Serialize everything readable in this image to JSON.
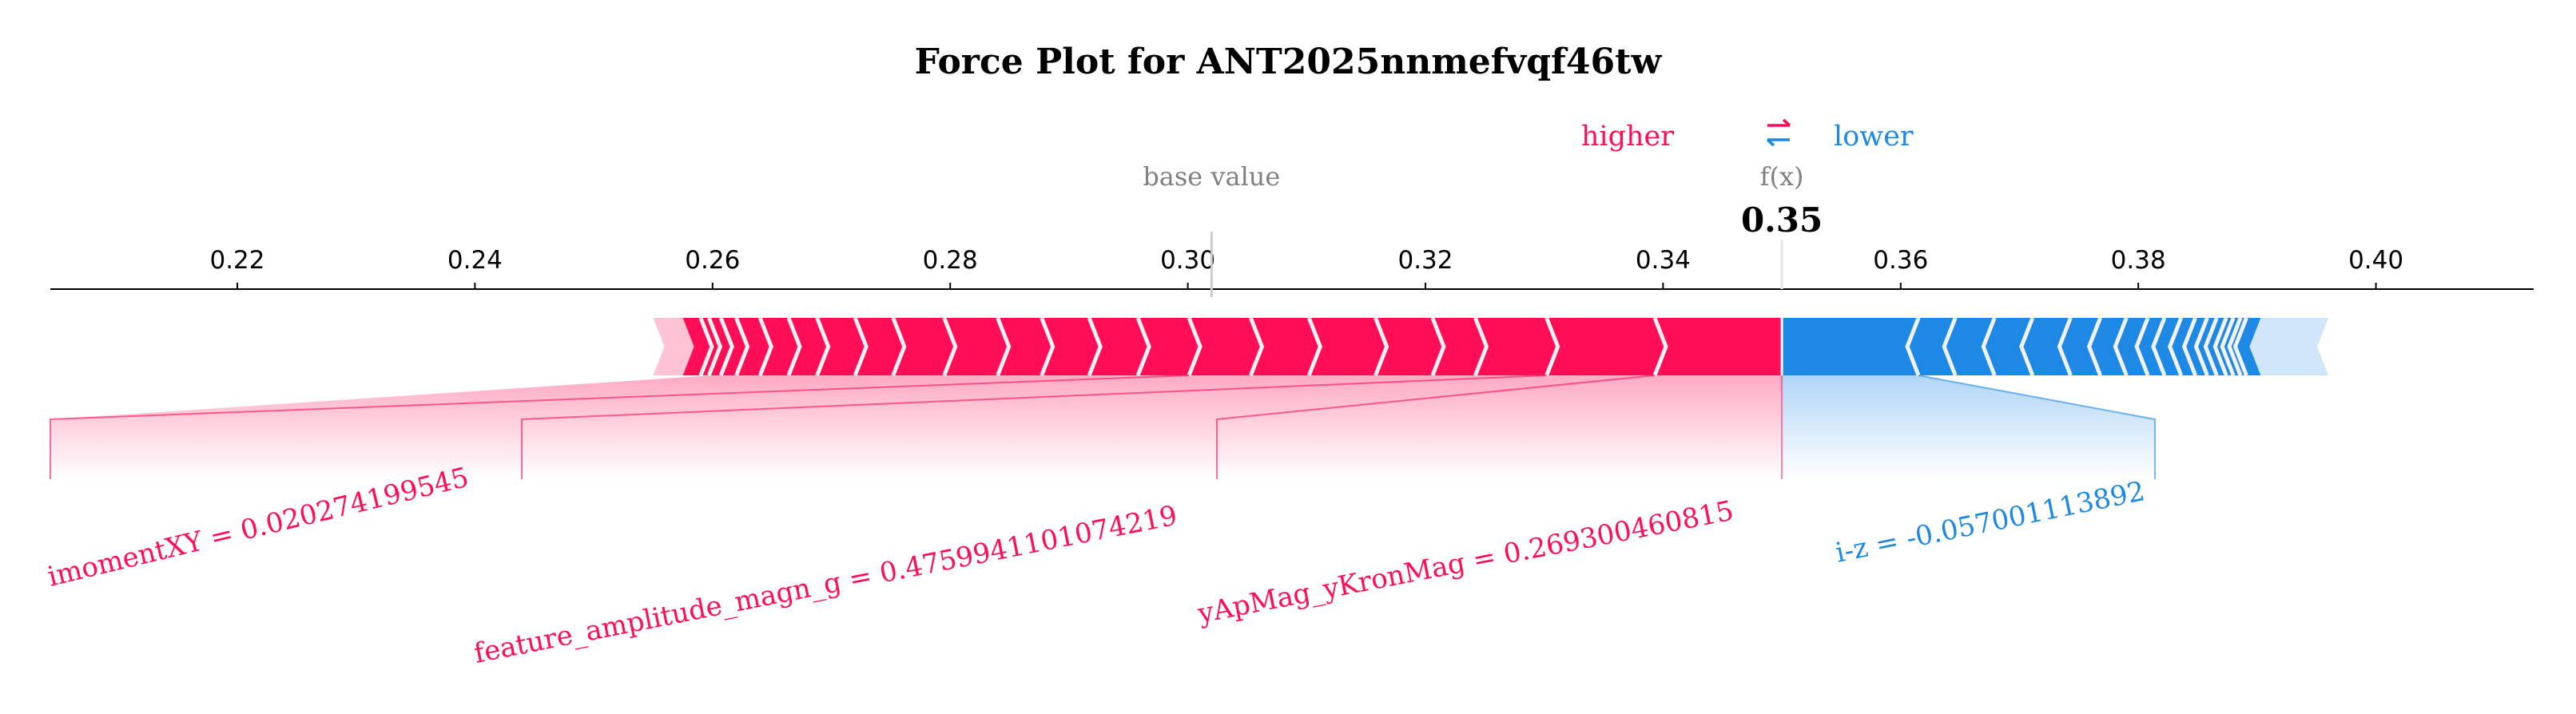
{
  "chart_data": {
    "type": "force",
    "title": "Force Plot for ANT2025nnmefvqf46tw",
    "legend": {
      "higher": "higher",
      "arrows": "⇄",
      "lower": "lower"
    },
    "base_value_label": "base value",
    "fx_label": "f(x)",
    "fx_value": 0.35,
    "fx_value_text": "0.35",
    "base_value": 0.302,
    "xlim": [
      0.205,
      0.413
    ],
    "ticks": [
      0.22,
      0.24,
      0.26,
      0.28,
      0.3,
      0.32,
      0.34,
      0.36,
      0.38,
      0.4
    ],
    "tick_labels": [
      "0.22",
      "0.24",
      "0.26",
      "0.28",
      "0.30",
      "0.32",
      "0.34",
      "0.36",
      "0.38",
      "0.40"
    ],
    "positive_range": [
      0.255,
      0.35
    ],
    "negative_range": [
      0.35,
      0.396
    ],
    "positive_segments": [
      0.3393,
      0.3302,
      0.3242,
      0.3206,
      0.3158,
      0.3102,
      0.3053,
      0.3001,
      0.2958,
      0.2917,
      0.2877,
      0.284,
      0.2795,
      0.2752,
      0.272,
      0.2688,
      0.2664,
      0.264,
      0.262,
      0.2607,
      0.2597,
      0.259
    ],
    "negative_segments": [
      0.3615,
      0.3646,
      0.3679,
      0.3711,
      0.3743,
      0.3768,
      0.379,
      0.3808,
      0.3822,
      0.3836,
      0.3848,
      0.3858,
      0.3866,
      0.3874,
      0.388,
      0.3886,
      0.3891
    ],
    "labels": [
      {
        "text": "imomentXY = 0.020274199545",
        "seg_start": 0.26,
        "seg_end": 0.3001,
        "direction": "higher"
      },
      {
        "text": "feature_amplitude_magn_g = 0.4759941101074219",
        "seg_start": 0.3001,
        "seg_end": 0.3302,
        "direction": "higher"
      },
      {
        "text": "yApMag_yKronMag = 0.269300460815",
        "seg_start": 0.3302,
        "seg_end": 0.3393,
        "direction": "higher"
      },
      {
        "text": "i-z = -0.057001113892",
        "seg_start": 0.35,
        "seg_end": 0.3615,
        "direction": "lower"
      }
    ],
    "colors": {
      "positive": "#ff0d57",
      "negative": "#1e88e5",
      "positive_light": "#ffc3d5",
      "negative_light": "#d1e6fa",
      "separator": "#f2f2f2"
    }
  }
}
